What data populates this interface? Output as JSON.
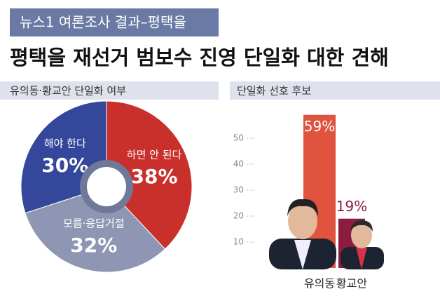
{
  "header": {
    "badge": "뉴스1 여론조사 결과–평택을",
    "title": "평택을 재선거 범보수 진영 단일화 대한 견해"
  },
  "chart_data": [
    {
      "type": "pie",
      "title": "유의동·황교안 단일화 여부",
      "categories": [
        "하면 안 된다",
        "모름·응답거절",
        "해야 한다"
      ],
      "values": [
        38,
        32,
        30
      ],
      "value_labels": [
        "38%",
        "32%",
        "30%"
      ],
      "colors": [
        "#c9302c",
        "#8f96b3",
        "#34479a"
      ]
    },
    {
      "type": "bar",
      "title": "단일화 선호 후보",
      "categories": [
        "유의동",
        "황교안"
      ],
      "values": [
        59,
        19
      ],
      "value_labels": [
        "59%",
        "19%"
      ],
      "colors": [
        "#e0533f",
        "#8c1d40"
      ],
      "ylim": [
        0,
        60
      ],
      "yticks": [
        10,
        20,
        30,
        40,
        50
      ]
    }
  ]
}
